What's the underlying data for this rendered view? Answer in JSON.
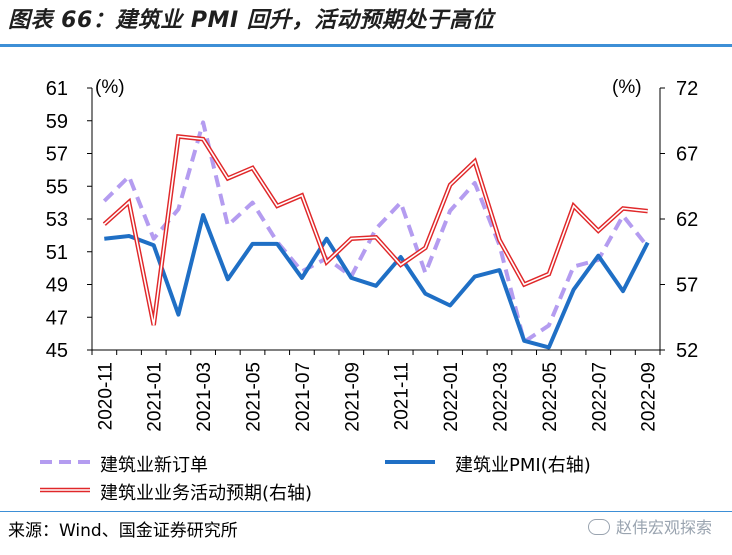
{
  "title": "图表 66：建筑业 PMI 回升，活动预期处于高位",
  "source": "来源：Wind、国金证券研究所",
  "watermark": "赵伟宏观探索",
  "chart_data": {
    "type": "line",
    "left_axis": {
      "unit": "(%)",
      "min": 45,
      "max": 61,
      "ticks": [
        45,
        47,
        49,
        51,
        53,
        55,
        57,
        59,
        61
      ]
    },
    "right_axis": {
      "unit": "(%)",
      "min": 52,
      "max": 72,
      "ticks": [
        52,
        57,
        62,
        67,
        72
      ]
    },
    "x_labels": [
      "2020-11",
      "2021-01",
      "2021-03",
      "2021-05",
      "2021-07",
      "2021-09",
      "2021-11",
      "2022-01",
      "2022-03",
      "2022-05",
      "2022-07",
      "2022-09"
    ],
    "x": [
      "2020-11",
      "2020-12",
      "2021-01",
      "2021-02",
      "2021-03",
      "2021-04",
      "2021-05",
      "2021-06",
      "2021-07",
      "2021-08",
      "2021-09",
      "2021-10",
      "2021-11",
      "2021-12",
      "2022-01",
      "2022-02",
      "2022-03",
      "2022-04",
      "2022-05",
      "2022-06",
      "2022-07",
      "2022-08",
      "2022-09"
    ],
    "series": [
      {
        "name": "建筑业新订单",
        "axis": "left",
        "style": "dashed",
        "color": "#b49cf0",
        "values": [
          54.1,
          55.6,
          51.8,
          53.6,
          58.9,
          52.6,
          54.0,
          51.6,
          49.8,
          50.6,
          49.5,
          52.4,
          54.0,
          49.7,
          53.5,
          55.2,
          51.4,
          45.5,
          46.5,
          50.1,
          50.5,
          53.2,
          51.3
        ]
      },
      {
        "name": "建筑业PMI(右轴)",
        "axis": "right",
        "style": "solid",
        "color": "#1f6fc5",
        "values": [
          60.5,
          60.7,
          60.0,
          54.7,
          62.3,
          57.4,
          60.1,
          60.1,
          57.5,
          60.5,
          57.5,
          56.9,
          59.1,
          56.3,
          55.4,
          57.6,
          58.1,
          52.7,
          52.2,
          56.6,
          59.2,
          56.5,
          60.2
        ]
      },
      {
        "name": "建筑业业务活动预期(右轴)",
        "axis": "right",
        "style": "double",
        "color": "#e0282a",
        "values": [
          61.6,
          63.3,
          53.9,
          68.3,
          68.1,
          65.1,
          65.9,
          63.0,
          63.8,
          58.7,
          60.5,
          60.6,
          58.5,
          59.8,
          64.6,
          66.4,
          60.4,
          57.0,
          57.8,
          63.0,
          61.1,
          62.8,
          62.6
        ]
      }
    ],
    "legend": [
      {
        "label": "建筑业新订单",
        "style": "dashed",
        "color": "#b49cf0"
      },
      {
        "label": "建筑业PMI(右轴)",
        "style": "solid",
        "color": "#1f6fc5"
      },
      {
        "label": "建筑业业务活动预期(右轴)",
        "style": "double",
        "color": "#e0282a"
      }
    ],
    "legend_placement": "bottom",
    "grid": false
  }
}
